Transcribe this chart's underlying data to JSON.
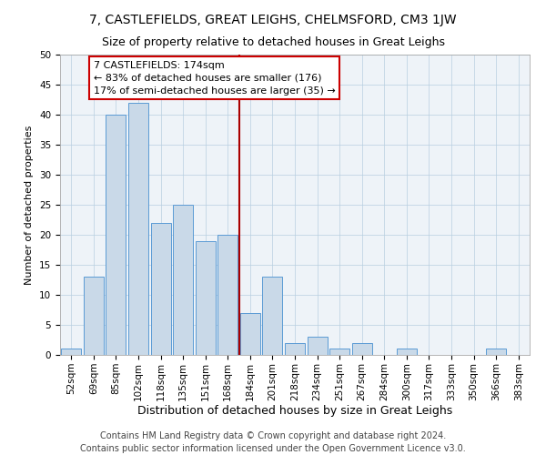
{
  "title": "7, CASTLEFIELDS, GREAT LEIGHS, CHELMSFORD, CM3 1JW",
  "subtitle": "Size of property relative to detached houses in Great Leighs",
  "xlabel": "Distribution of detached houses by size in Great Leighs",
  "ylabel": "Number of detached properties",
  "categories": [
    "52sqm",
    "69sqm",
    "85sqm",
    "102sqm",
    "118sqm",
    "135sqm",
    "151sqm",
    "168sqm",
    "184sqm",
    "201sqm",
    "218sqm",
    "234sqm",
    "251sqm",
    "267sqm",
    "284sqm",
    "300sqm",
    "317sqm",
    "333sqm",
    "350sqm",
    "366sqm",
    "383sqm"
  ],
  "values": [
    1,
    13,
    40,
    42,
    22,
    25,
    19,
    20,
    7,
    13,
    2,
    3,
    1,
    2,
    0,
    1,
    0,
    0,
    0,
    1,
    0
  ],
  "bar_color": "#c9d9e8",
  "bar_edge_color": "#5b9bd5",
  "red_line_index": 7,
  "annotation_text": "7 CASTLEFIELDS: 174sqm\n← 83% of detached houses are smaller (176)\n17% of semi-detached houses are larger (35) →",
  "annotation_box_color": "#ffffff",
  "annotation_box_edge_color": "#cc0000",
  "ylim": [
    0,
    50
  ],
  "yticks": [
    0,
    5,
    10,
    15,
    20,
    25,
    30,
    35,
    40,
    45,
    50
  ],
  "grid_color": "#b8cfe0",
  "background_color": "#eef3f8",
  "footer_line1": "Contains HM Land Registry data © Crown copyright and database right 2024.",
  "footer_line2": "Contains public sector information licensed under the Open Government Licence v3.0.",
  "title_fontsize": 10,
  "subtitle_fontsize": 9,
  "xlabel_fontsize": 9,
  "ylabel_fontsize": 8,
  "tick_fontsize": 7.5,
  "annotation_fontsize": 8,
  "footer_fontsize": 7
}
